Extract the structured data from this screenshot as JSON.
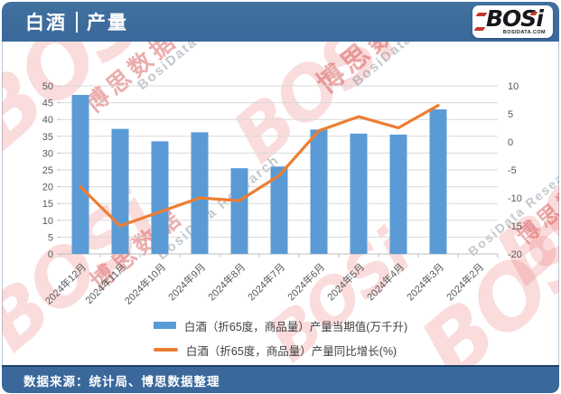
{
  "header": {
    "title_primary": "白酒",
    "title_separator": "|",
    "title_secondary": "产量",
    "logo": {
      "text": "BOSi",
      "subtext": "BOSIDATA.COM"
    }
  },
  "footer": {
    "source": "数据来源：统计局、博思数据整理"
  },
  "watermarks": {
    "brand_latin": "BOSi",
    "brand_cn": "博思数据",
    "research": "BosiData Research"
  },
  "colors": {
    "header_bg": "#3A689B",
    "footer_bg": "#3A689B",
    "bar": "#5B9BD5",
    "line": "#ED7D31",
    "grid": "#D9D9D9",
    "axis_line": "#BFBFBF",
    "axis_text": "#595959"
  },
  "chart_data": {
    "type": "bar",
    "combo": [
      "bar",
      "line"
    ],
    "title": "白酒 | 产量",
    "categories": [
      "2024年12月",
      "2024年11月",
      "2024年10月",
      "2024年9月",
      "2024年8月",
      "2024年7月",
      "2024年6月",
      "2024年5月",
      "2024年4月",
      "2024年3月",
      "2024年2月"
    ],
    "series": [
      {
        "name": "白酒（折65度，商品量）产量当期值(万千升)",
        "type": "bar",
        "axis": "left",
        "values": [
          47.3,
          37.2,
          33.5,
          36.2,
          25.5,
          26,
          37,
          35.8,
          35.5,
          43,
          null
        ]
      },
      {
        "name": "白酒（折65度，商品量）产量同比增长(%)",
        "type": "line",
        "axis": "right",
        "values": [
          -8,
          -15,
          -12.5,
          -10,
          -10.5,
          -6,
          2,
          4.5,
          2.5,
          6.5,
          null
        ]
      }
    ],
    "left_axis": {
      "label": "产量当期值(万千升)",
      "min": 0,
      "max": 50,
      "ticks": [
        0,
        5,
        10,
        15,
        20,
        25,
        30,
        35,
        40,
        45,
        50
      ]
    },
    "right_axis": {
      "label": "产量同比增长(%)",
      "min": -20,
      "max": 10,
      "ticks": [
        10,
        5,
        0,
        -5,
        -10,
        -15,
        -20
      ]
    },
    "grid": true,
    "legend_position": "bottom"
  }
}
